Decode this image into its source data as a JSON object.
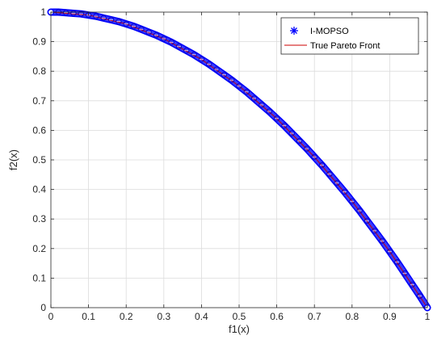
{
  "chart_data": {
    "type": "scatter",
    "title": "",
    "xlabel": "f1(x)",
    "ylabel": "f2(x)",
    "xlim": [
      0,
      1
    ],
    "ylim": [
      0,
      1
    ],
    "xticks": [
      0,
      0.1,
      0.2,
      0.3,
      0.4,
      0.5,
      0.6,
      0.7,
      0.8,
      0.9,
      1
    ],
    "yticks": [
      0,
      0.1,
      0.2,
      0.3,
      0.4,
      0.5,
      0.6,
      0.7,
      0.8,
      0.9,
      1
    ],
    "xtick_labels": [
      "0",
      "0.1",
      "0.2",
      "0.3",
      "0.4",
      "0.5",
      "0.6",
      "0.7",
      "0.8",
      "0.9",
      "1"
    ],
    "ytick_labels": [
      "0",
      "0.1",
      "0.2",
      "0.3",
      "0.4",
      "0.5",
      "0.6",
      "0.7",
      "0.8",
      "0.9",
      "1"
    ],
    "grid": true,
    "legend_position": "top-right",
    "series": [
      {
        "name": "I-MOPSO",
        "kind": "markers",
        "marker": "asterisk-circle",
        "color": "#0000ff",
        "x": [
          0,
          0.02,
          0.04,
          0.06,
          0.08,
          0.1,
          0.12,
          0.14,
          0.16,
          0.18,
          0.2,
          0.22,
          0.24,
          0.26,
          0.28,
          0.3,
          0.32,
          0.34,
          0.36,
          0.38,
          0.4,
          0.42,
          0.44,
          0.46,
          0.48,
          0.5,
          0.52,
          0.54,
          0.56,
          0.58,
          0.6,
          0.62,
          0.64,
          0.66,
          0.68,
          0.7,
          0.72,
          0.74,
          0.76,
          0.78,
          0.8,
          0.82,
          0.84,
          0.86,
          0.88,
          0.9,
          0.92,
          0.94,
          0.96,
          0.98,
          1
        ],
        "y": [
          1,
          1,
          0.998,
          0.996,
          0.994,
          0.99,
          0.986,
          0.98,
          0.974,
          0.968,
          0.96,
          0.952,
          0.942,
          0.932,
          0.922,
          0.91,
          0.898,
          0.884,
          0.87,
          0.856,
          0.84,
          0.824,
          0.806,
          0.788,
          0.77,
          0.75,
          0.73,
          0.708,
          0.686,
          0.664,
          0.64,
          0.616,
          0.59,
          0.564,
          0.538,
          0.51,
          0.482,
          0.452,
          0.422,
          0.392,
          0.36,
          0.328,
          0.294,
          0.26,
          0.226,
          0.19,
          0.154,
          0.116,
          0.078,
          0.04,
          0
        ]
      },
      {
        "name": "True Pareto Front",
        "kind": "line",
        "color": "#cc0000",
        "x": [
          0,
          0.1,
          0.2,
          0.3,
          0.4,
          0.5,
          0.6,
          0.7,
          0.8,
          0.9,
          1
        ],
        "y": [
          1,
          0.99,
          0.96,
          0.91,
          0.84,
          0.75,
          0.64,
          0.51,
          0.36,
          0.19,
          0
        ]
      }
    ]
  }
}
